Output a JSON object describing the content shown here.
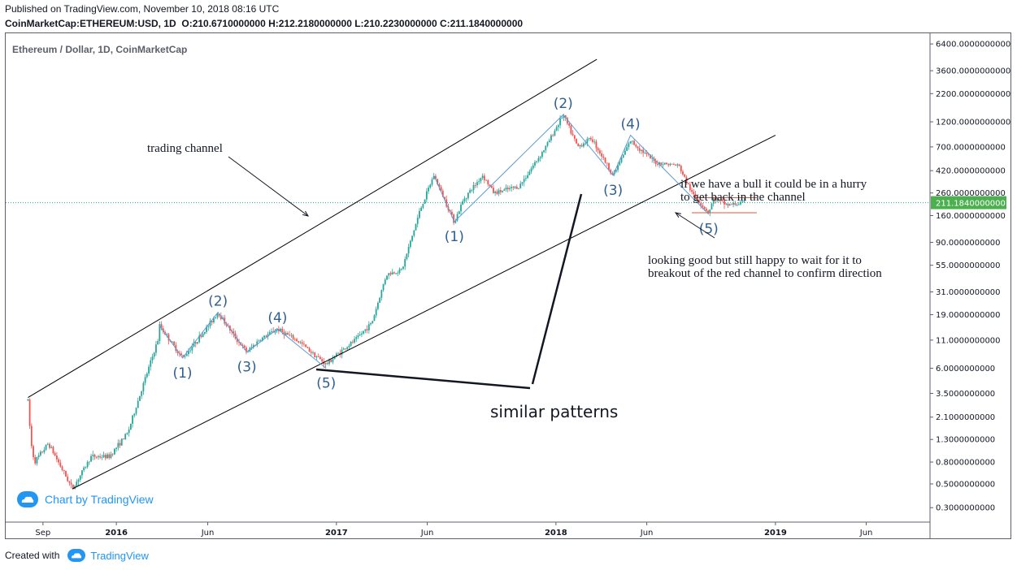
{
  "header": {
    "published": "Published on TradingView.com, November 10, 2018 08:16 UTC",
    "symbol_full": "CoinMarketCap:ETHEREUM:USD, 1D",
    "ohlc": "O:210.6710000000 H:212.2180000000 L:210.2230000000 C:211.1840000000"
  },
  "chart_title": "Ethereum / Dollar, 1D, CoinMarketCap",
  "watermark": "Chart by TradingView",
  "footer": {
    "created_with": "Created with",
    "brand": "TradingView"
  },
  "colors": {
    "up": "#26a69a",
    "down": "#ef5350",
    "wave": "#5b9bd5",
    "channel": "#000000",
    "red_channel": "#e5533d",
    "price_badge": "#4caf50"
  },
  "chart_data": {
    "type": "candlestick",
    "title": "Ethereum / Dollar, 1D, CoinMarketCap",
    "y_scale": "log",
    "ylim": [
      0.22,
      7000
    ],
    "y_ticks": [
      "6400.0000000000",
      "3600.0000000000",
      "2200.0000000000",
      "1200.0000000000",
      "700.0000000000",
      "420.0000000000",
      "260.0000000000",
      "160.0000000000",
      "90.0000000000",
      "55.0000000000",
      "31.0000000000",
      "19.0000000000",
      "11.0000000000",
      "6.0000000000",
      "3.5000000000",
      "2.1000000000",
      "1.3000000000",
      "0.8000000000",
      "0.5000000000",
      "0.3000000000"
    ],
    "x_ticks": [
      {
        "label": "Sep",
        "date": "2015-09-01",
        "bold": false
      },
      {
        "label": "2016",
        "date": "2016-01-01",
        "bold": true
      },
      {
        "label": "Jun",
        "date": "2016-06-01",
        "bold": false
      },
      {
        "label": "2017",
        "date": "2017-01-01",
        "bold": true
      },
      {
        "label": "Jun",
        "date": "2017-06-01",
        "bold": false
      },
      {
        "label": "2018",
        "date": "2018-01-01",
        "bold": true
      },
      {
        "label": "Jun",
        "date": "2018-06-01",
        "bold": false
      },
      {
        "label": "2019",
        "date": "2019-01-01",
        "bold": true
      },
      {
        "label": "Jun",
        "date": "2019-06-01",
        "bold": false
      }
    ],
    "x_range": [
      "2015-07-01",
      "2019-09-15"
    ],
    "last_price": "211.1840000000",
    "last_value": 211.184,
    "price_path": [
      [
        "2015-08-07",
        3.0
      ],
      [
        "2015-08-12",
        1.2
      ],
      [
        "2015-08-18",
        0.8
      ],
      [
        "2015-09-10",
        1.2
      ],
      [
        "2015-10-20",
        0.45
      ],
      [
        "2015-11-20",
        0.9
      ],
      [
        "2015-12-20",
        0.9
      ],
      [
        "2016-01-20",
        1.5
      ],
      [
        "2016-02-10",
        3.5
      ],
      [
        "2016-03-10",
        11.0
      ],
      [
        "2016-03-13",
        15.0
      ],
      [
        "2016-04-20",
        7.5
      ],
      [
        "2016-05-25",
        13.0
      ],
      [
        "2016-06-18",
        20.0
      ],
      [
        "2016-07-20",
        11.0
      ],
      [
        "2016-08-05",
        8.5
      ],
      [
        "2016-08-25",
        11.0
      ],
      [
        "2016-09-25",
        14.0
      ],
      [
        "2016-11-01",
        10.5
      ],
      [
        "2016-12-15",
        6.5
      ],
      [
        "2017-01-01",
        8.0
      ],
      [
        "2017-02-01",
        11.0
      ],
      [
        "2017-03-01",
        16.0
      ],
      [
        "2017-03-25",
        45.0
      ],
      [
        "2017-04-20",
        50.0
      ],
      [
        "2017-05-20",
        180.0
      ],
      [
        "2017-06-12",
        380.0
      ],
      [
        "2017-07-16",
        140.0
      ],
      [
        "2017-08-01",
        230.0
      ],
      [
        "2017-09-01",
        380.0
      ],
      [
        "2017-09-20",
        260.0
      ],
      [
        "2017-11-01",
        300.0
      ],
      [
        "2017-12-15",
        700.0
      ],
      [
        "2018-01-13",
        1400.0
      ],
      [
        "2018-02-06",
        700.0
      ],
      [
        "2018-03-01",
        850.0
      ],
      [
        "2018-04-06",
        380.0
      ],
      [
        "2018-05-05",
        800.0
      ],
      [
        "2018-06-15",
        500.0
      ],
      [
        "2018-07-24",
        470.0
      ],
      [
        "2018-08-15",
        260.0
      ],
      [
        "2018-09-12",
        170.0
      ],
      [
        "2018-09-20",
        230.0
      ],
      [
        "2018-10-15",
        200.0
      ],
      [
        "2018-11-10",
        211.184
      ]
    ],
    "annotations": {
      "trading_channel_label": "trading channel",
      "bull_note_line1": "if we have a bull it could be in a hurry",
      "bull_note_line2": "to get back in the channel",
      "wait_note_line1": "looking good but still happy to wait for it to",
      "wait_note_line2": "breakout of the red channel to confirm direction",
      "similar_patterns": "similar patterns",
      "waves_2016": [
        {
          "label": "(1)",
          "date": "2016-04-20",
          "price": 7.5,
          "pos": "below"
        },
        {
          "label": "(2)",
          "date": "2016-06-18",
          "price": 20.0,
          "pos": "above"
        },
        {
          "label": "(3)",
          "date": "2016-08-05",
          "price": 8.5,
          "pos": "below"
        },
        {
          "label": "(4)",
          "date": "2016-09-25",
          "price": 14.0,
          "pos": "above"
        },
        {
          "label": "(5)",
          "date": "2016-12-15",
          "price": 6.0,
          "pos": "below"
        }
      ],
      "waves_2018": [
        {
          "label": "(1)",
          "date": "2017-07-16",
          "price": 140.0,
          "pos": "below"
        },
        {
          "label": "(2)",
          "date": "2018-01-13",
          "price": 1400.0,
          "pos": "above"
        },
        {
          "label": "(3)",
          "date": "2018-04-06",
          "price": 380.0,
          "pos": "below"
        },
        {
          "label": "(4)",
          "date": "2018-05-05",
          "price": 900.0,
          "pos": "above"
        },
        {
          "label": "(5)",
          "date": "2018-09-12",
          "price": 165.0,
          "pos": "below"
        }
      ],
      "wave_line_2016": [
        [
          "2016-03-13",
          15.0
        ],
        [
          "2016-04-20",
          7.5
        ],
        [
          "2016-06-18",
          20.0
        ],
        [
          "2016-08-05",
          8.5
        ],
        [
          "2016-09-25",
          14.0
        ],
        [
          "2016-12-15",
          6.0
        ]
      ],
      "wave_line_2018": [
        [
          "2017-06-12",
          380.0
        ],
        [
          "2017-07-16",
          140.0
        ],
        [
          "2018-01-13",
          1400.0
        ],
        [
          "2018-04-06",
          380.0
        ],
        [
          "2018-05-05",
          900.0
        ],
        [
          "2018-09-12",
          165.0
        ]
      ],
      "channel_upper": [
        [
          "2015-08-07",
          3.2
        ],
        [
          "2018-03-10",
          4600.0
        ]
      ],
      "channel_lower": [
        [
          "2015-10-20",
          0.45
        ],
        [
          "2019-01-01",
          900.0
        ]
      ],
      "red_channel_top": [
        [
          "2018-08-20",
          235.0
        ],
        [
          "2018-12-01",
          235.0
        ]
      ],
      "red_channel_bottom": [
        [
          "2018-08-15",
          170.0
        ],
        [
          "2018-12-01",
          170.0
        ]
      ]
    }
  }
}
